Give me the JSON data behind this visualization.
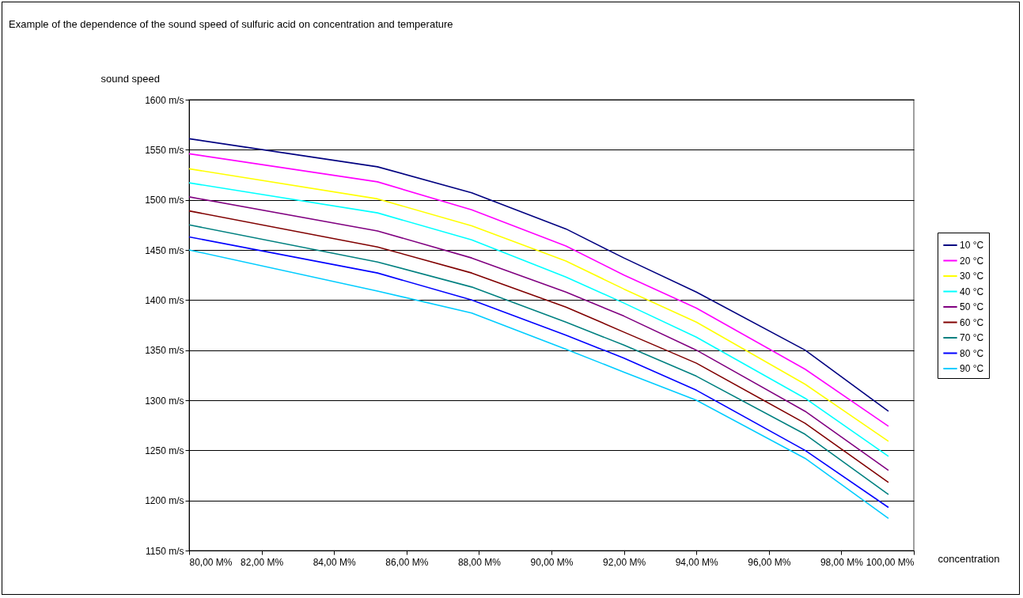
{
  "chart_data": {
    "type": "line",
    "title": "Example of the dependence of the sound speed of sulfuric acid on concentration and temperature",
    "xlabel": "concentration",
    "ylabel": "sound speed",
    "x": [
      80,
      85.2,
      87.8,
      90.4,
      92,
      94,
      97,
      99.3
    ],
    "series": [
      {
        "name": "10 °C",
        "color": "#000080",
        "values": [
          1561,
          1533,
          1507,
          1471,
          1442,
          1408,
          1350,
          1289
        ]
      },
      {
        "name": "20 °C",
        "color": "#ff00ff",
        "values": [
          1546,
          1518,
          1490,
          1454,
          1425,
          1392,
          1331,
          1274
        ]
      },
      {
        "name": "30 °C",
        "color": "#ffff00",
        "values": [
          1531,
          1501,
          1474,
          1439,
          1411,
          1378,
          1316,
          1259
        ]
      },
      {
        "name": "40 °C",
        "color": "#00ffff",
        "values": [
          1517,
          1487,
          1460,
          1423,
          1397,
          1363,
          1302,
          1244
        ]
      },
      {
        "name": "50 °C",
        "color": "#800080",
        "values": [
          1503,
          1469,
          1442,
          1408,
          1384,
          1350,
          1289,
          1230
        ]
      },
      {
        "name": "60 °C",
        "color": "#800000",
        "values": [
          1489,
          1453,
          1427,
          1393,
          1368,
          1337,
          1277,
          1218
        ]
      },
      {
        "name": "70 °C",
        "color": "#008080",
        "values": [
          1475,
          1438,
          1413,
          1378,
          1355,
          1324,
          1266,
          1206
        ]
      },
      {
        "name": "80 °C",
        "color": "#0000ff",
        "values": [
          1463,
          1427,
          1400,
          1365,
          1342,
          1310,
          1250,
          1193
        ]
      },
      {
        "name": "90 °C",
        "color": "#00ccff",
        "values": [
          1450,
          1409,
          1387,
          1351,
          1328,
          1300,
          1242,
          1182
        ]
      }
    ],
    "xlim": [
      80,
      100
    ],
    "xticks": [
      {
        "value": 80,
        "label": "80,00 M%"
      },
      {
        "value": 82,
        "label": "82,00 M%"
      },
      {
        "value": 84,
        "label": "84,00 M%"
      },
      {
        "value": 86,
        "label": "86,00 M%"
      },
      {
        "value": 88,
        "label": "88,00 M%"
      },
      {
        "value": 90,
        "label": "90,00 M%"
      },
      {
        "value": 92,
        "label": "92,00 M%"
      },
      {
        "value": 94,
        "label": "94,00 M%"
      },
      {
        "value": 96,
        "label": "96,00 M%"
      },
      {
        "value": 98,
        "label": "98,00 M%"
      },
      {
        "value": 100,
        "label": "100,00 M%"
      }
    ],
    "ylim": [
      1150,
      1600
    ],
    "yticks": [
      {
        "value": 1150,
        "label": "1150 m/s"
      },
      {
        "value": 1200,
        "label": "1200 m/s"
      },
      {
        "value": 1250,
        "label": "1250 m/s"
      },
      {
        "value": 1300,
        "label": "1300 m/s"
      },
      {
        "value": 1350,
        "label": "1350 m/s"
      },
      {
        "value": 1400,
        "label": "1400 m/s"
      },
      {
        "value": 1450,
        "label": "1450 m/s"
      },
      {
        "value": 1500,
        "label": "1500 m/s"
      },
      {
        "value": 1550,
        "label": "1550 m/s"
      },
      {
        "value": 1600,
        "label": "1600 m/s"
      }
    ],
    "grid": "y",
    "legend": "right",
    "line_style": "solid"
  }
}
